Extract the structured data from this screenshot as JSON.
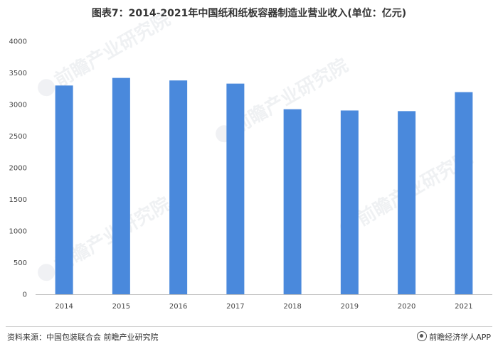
{
  "title": "图表7：2014-2021年中国纸和纸板容器制造业营业收入(单位：亿元)",
  "watermark": {
    "text": "前瞻产业研究院"
  },
  "footer": {
    "source": "资料来源：中国包装联合会 前瞻产业研究院",
    "brand": "前瞻经济学人APP",
    "brand_icon": "qianzhan-logo-icon"
  },
  "colors": {
    "bar": "#4a89dc",
    "axis": "#bfbfbf",
    "watermark": "#c9ced6"
  },
  "chart_data": {
    "type": "bar",
    "title": "图表7：2014-2021年中国纸和纸板容器制造业营业收入(单位：亿元)",
    "xlabel": "",
    "ylabel": "",
    "categories": [
      "2014",
      "2015",
      "2016",
      "2017",
      "2018",
      "2019",
      "2020",
      "2021"
    ],
    "values": [
      3300,
      3420,
      3380,
      3330,
      2925,
      2905,
      2895,
      3195
    ],
    "ylim": [
      0,
      4000
    ],
    "yticks": [
      0,
      500,
      1000,
      1500,
      2000,
      2500,
      3000,
      3500,
      4000
    ],
    "grid": false,
    "legend": "none"
  }
}
